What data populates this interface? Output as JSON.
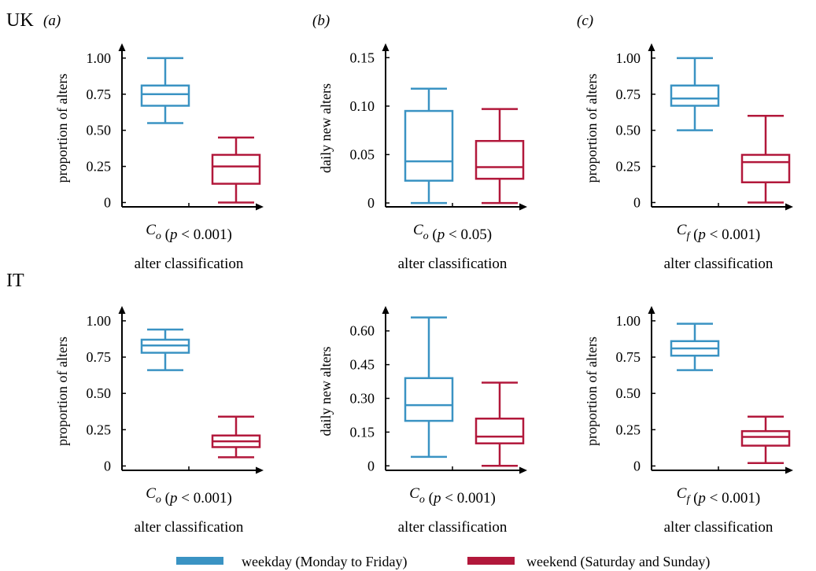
{
  "colors": {
    "weekday": "#3a93c3",
    "weekend": "#b2183b",
    "axis": "#000000"
  },
  "legend": {
    "weekday": "weekday (Monday to Friday)",
    "weekend": "weekend (Saturday and Sunday)"
  },
  "rows": [
    {
      "label": "UK",
      "panels": [
        "(a)",
        "(b)",
        "(c)"
      ]
    },
    {
      "label": "IT",
      "panels": [
        "",
        "",
        ""
      ]
    }
  ],
  "chart_data": [
    {
      "type": "box",
      "row": "UK",
      "panel": "(a)",
      "ylabel": "proportion of alters",
      "xlabel": "alter classification",
      "category": "C_o (p < 0.001)",
      "category_parts": [
        "C",
        "o",
        " (p < 0.001)"
      ],
      "yticks": [
        0,
        0.25,
        0.5,
        0.75,
        1.0
      ],
      "ytick_labels": [
        "0",
        "0.25",
        "0.50",
        "0.75",
        "1.00"
      ],
      "ylim": [
        -0.03,
        1.07
      ],
      "series": [
        {
          "name": "weekday (Monday to Friday)",
          "min": 0.55,
          "q1": 0.67,
          "median": 0.75,
          "q3": 0.81,
          "max": 1.0
        },
        {
          "name": "weekend (Saturday and Sunday)",
          "min": 0.0,
          "q1": 0.13,
          "median": 0.25,
          "q3": 0.33,
          "max": 0.45
        }
      ]
    },
    {
      "type": "box",
      "row": "UK",
      "panel": "(b)",
      "ylabel": "daily new alters",
      "xlabel": "alter classification",
      "category": "C_o (p < 0.05)",
      "category_parts": [
        "C",
        "o",
        " (p < 0.05)"
      ],
      "yticks": [
        0,
        0.05,
        0.1,
        0.15
      ],
      "ytick_labels": [
        "0",
        "0.05",
        "0.10",
        "0.15"
      ],
      "ylim": [
        -0.004,
        0.16
      ],
      "series": [
        {
          "name": "weekday (Monday to Friday)",
          "min": 0.0,
          "q1": 0.023,
          "median": 0.043,
          "q3": 0.095,
          "max": 0.118
        },
        {
          "name": "weekend (Saturday and Sunday)",
          "min": 0.0,
          "q1": 0.025,
          "median": 0.037,
          "q3": 0.064,
          "max": 0.097
        }
      ]
    },
    {
      "type": "box",
      "row": "UK",
      "panel": "(c)",
      "ylabel": "proportion of alters",
      "xlabel": "alter classification",
      "category": "C_f (p < 0.001)",
      "category_parts": [
        "C",
        "f",
        " (p < 0.001)"
      ],
      "yticks": [
        0,
        0.25,
        0.5,
        0.75,
        1.0
      ],
      "ytick_labels": [
        "0",
        "0.25",
        "0.50",
        "0.75",
        "1.00"
      ],
      "ylim": [
        -0.03,
        1.07
      ],
      "series": [
        {
          "name": "weekday (Monday to Friday)",
          "min": 0.5,
          "q1": 0.67,
          "median": 0.72,
          "q3": 0.81,
          "max": 1.0
        },
        {
          "name": "weekend (Saturday and Sunday)",
          "min": 0.0,
          "q1": 0.14,
          "median": 0.28,
          "q3": 0.33,
          "max": 0.6
        }
      ]
    },
    {
      "type": "box",
      "row": "IT",
      "panel": "",
      "ylabel": "proportion of alters",
      "xlabel": "alter classification",
      "category": "C_o (p < 0.001)",
      "category_parts": [
        "C",
        "o",
        " (p < 0.001)"
      ],
      "yticks": [
        0,
        0.25,
        0.5,
        0.75,
        1.0
      ],
      "ytick_labels": [
        "0",
        "0.25",
        "0.50",
        "0.75",
        "1.00"
      ],
      "ylim": [
        -0.03,
        1.07
      ],
      "series": [
        {
          "name": "weekday (Monday to Friday)",
          "min": 0.66,
          "q1": 0.78,
          "median": 0.83,
          "q3": 0.87,
          "max": 0.94
        },
        {
          "name": "weekend (Saturday and Sunday)",
          "min": 0.06,
          "q1": 0.13,
          "median": 0.17,
          "q3": 0.21,
          "max": 0.34
        }
      ]
    },
    {
      "type": "box",
      "row": "IT",
      "panel": "",
      "ylabel": "daily new alters",
      "xlabel": "alter classification",
      "category": "C_o (p < 0.001)",
      "category_parts": [
        "C",
        "o",
        " (p < 0.001)"
      ],
      "yticks": [
        0,
        0.15,
        0.3,
        0.45,
        0.6
      ],
      "ytick_labels": [
        "0",
        "0.15",
        "0.30",
        "0.45",
        "0.60"
      ],
      "ylim": [
        -0.02,
        0.69
      ],
      "series": [
        {
          "name": "weekday (Monday to Friday)",
          "min": 0.04,
          "q1": 0.2,
          "median": 0.27,
          "q3": 0.39,
          "max": 0.66
        },
        {
          "name": "weekend (Saturday and Sunday)",
          "min": 0.0,
          "q1": 0.1,
          "median": 0.13,
          "q3": 0.21,
          "max": 0.37
        }
      ]
    },
    {
      "type": "box",
      "row": "IT",
      "panel": "",
      "ylabel": "proportion of alters",
      "xlabel": "alter classification",
      "category": "C_f (p < 0.001)",
      "category_parts": [
        "C",
        "f",
        " (p < 0.001)"
      ],
      "yticks": [
        0,
        0.25,
        0.5,
        0.75,
        1.0
      ],
      "ytick_labels": [
        "0",
        "0.25",
        "0.50",
        "0.75",
        "1.00"
      ],
      "ylim": [
        -0.03,
        1.07
      ],
      "series": [
        {
          "name": "weekday (Monday to Friday)",
          "min": 0.66,
          "q1": 0.76,
          "median": 0.81,
          "q3": 0.86,
          "max": 0.98
        },
        {
          "name": "weekend (Saturday and Sunday)",
          "min": 0.02,
          "q1": 0.14,
          "median": 0.2,
          "q3": 0.24,
          "max": 0.34
        }
      ]
    }
  ]
}
